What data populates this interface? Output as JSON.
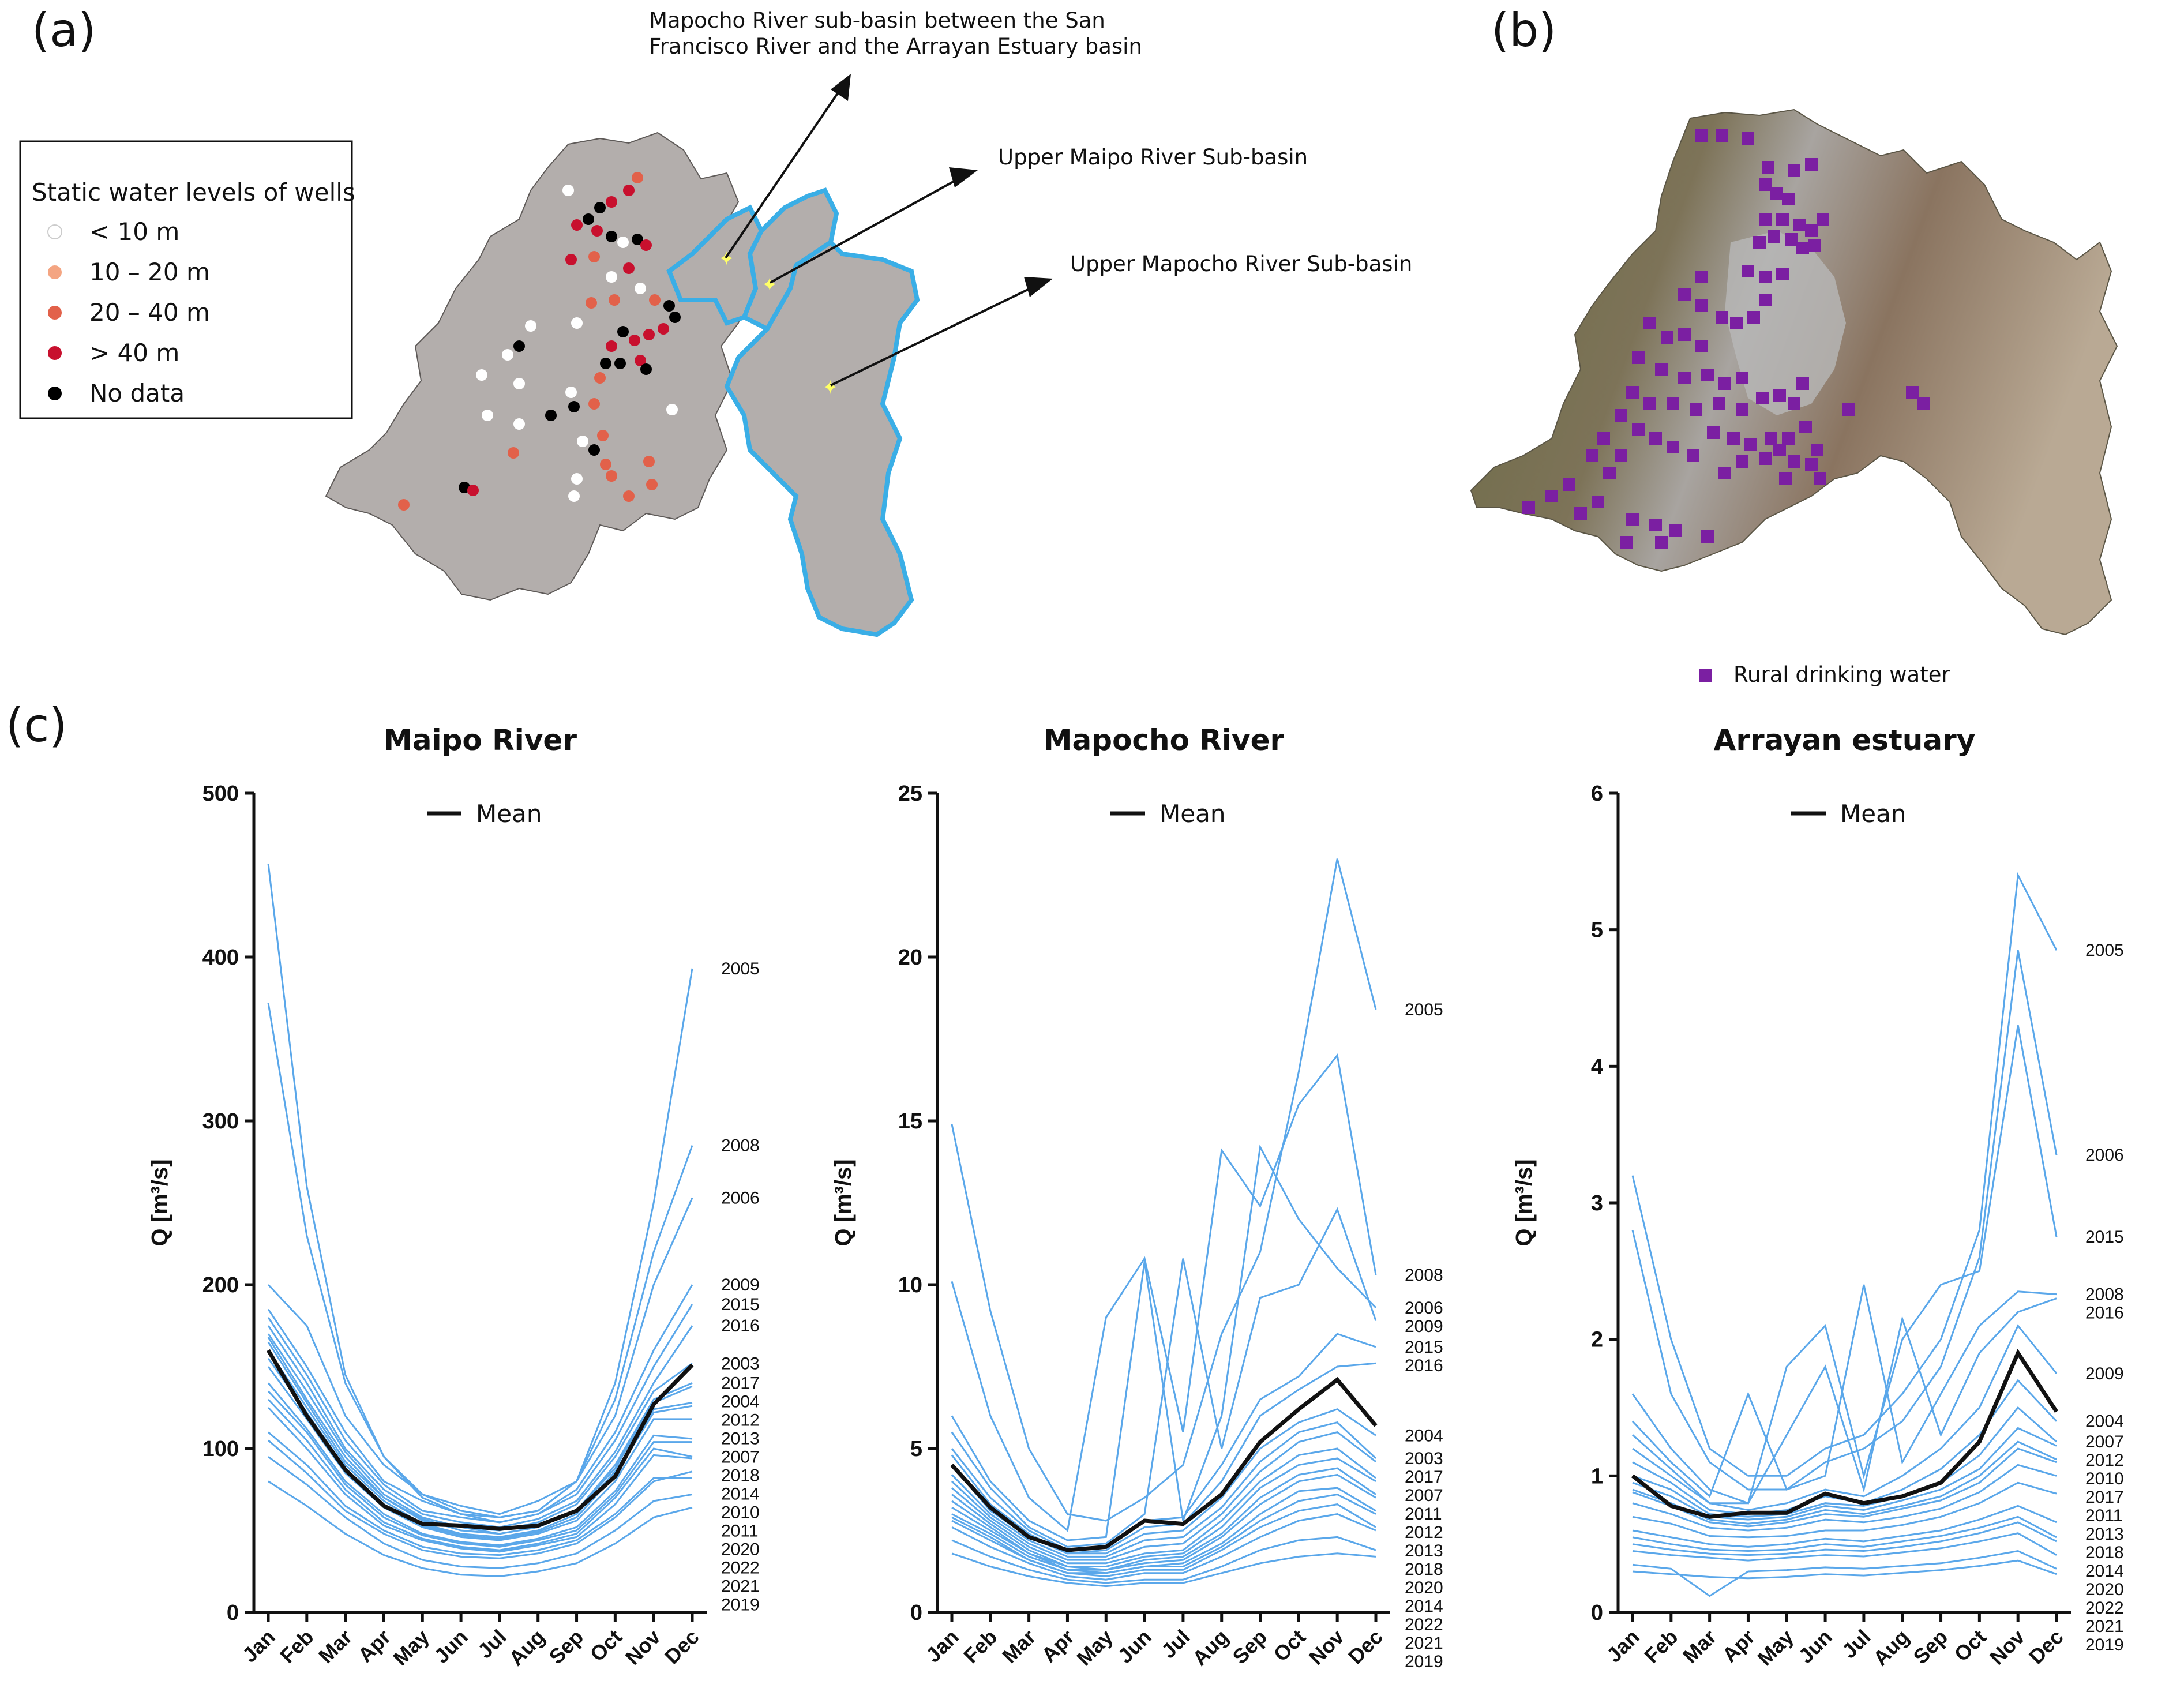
{
  "panels": {
    "a": "(a)",
    "b": "(b)",
    "c": "(c)"
  },
  "map_a": {
    "legend_title": "Static water levels of wells",
    "legend_items": [
      {
        "label": "< 10 m",
        "color": "#ffffff"
      },
      {
        "label": "10 – 20 m",
        "color": "#f4a582"
      },
      {
        "label": "20 – 40 m",
        "color": "#e2614a"
      },
      {
        "label": "> 40 m",
        "color": "#c8102e"
      },
      {
        "label": "No data",
        "color": "#000000"
      }
    ],
    "callouts": [
      "Mapocho River sub-basin between the San",
      "Francisco River and the Arrayan Estuary basin",
      "Upper Maipo River Sub-basin",
      "Upper Mapocho River Sub-basin"
    ],
    "colors": {
      "basin": "#b3aeac",
      "subbasin_outline": "#3aaee6",
      "marker": "#ffff66"
    }
  },
  "map_b": {
    "legend_label": "Rural drinking water",
    "colors": {
      "marker": "#7b1fa2"
    }
  },
  "chart_data": [
    {
      "type": "line",
      "title": "Maipo River",
      "xlabel": "",
      "ylabel": "Q [m³/s]",
      "ylim": [
        0,
        500
      ],
      "yticks": [
        "0",
        "100",
        "200",
        "300",
        "400",
        "500"
      ],
      "categories": [
        "Jan",
        "Feb",
        "Mar",
        "Apr",
        "May",
        "Jun",
        "Jul",
        "Aug",
        "Sep",
        "Oct",
        "Nov",
        "Dec"
      ],
      "legend": "Mean",
      "mean": [
        160,
        120,
        87,
        65,
        54,
        53,
        51,
        53,
        62,
        83,
        127,
        151
      ],
      "series": [
        {
          "name": "2005",
          "values": [
            457,
            260,
            145,
            95,
            70,
            60,
            58,
            62,
            80,
            140,
            250,
            393
          ]
        },
        {
          "name": "2008",
          "values": [
            372,
            230,
            140,
            95,
            72,
            62,
            58,
            62,
            80,
            130,
            220,
            285
          ]
        },
        {
          "name": "2006",
          "values": [
            200,
            175,
            120,
            90,
            72,
            65,
            60,
            68,
            80,
            120,
            200,
            253
          ]
        },
        {
          "name": "2009",
          "values": [
            185,
            150,
            110,
            80,
            68,
            60,
            55,
            60,
            75,
            110,
            160,
            200
          ]
        },
        {
          "name": "2015",
          "values": [
            180,
            145,
            105,
            78,
            62,
            58,
            55,
            60,
            72,
            105,
            150,
            188
          ]
        },
        {
          "name": "2016",
          "values": [
            175,
            140,
            100,
            75,
            60,
            55,
            52,
            57,
            68,
            98,
            140,
            175
          ]
        },
        {
          "name": "2003",
          "values": [
            170,
            135,
            98,
            72,
            58,
            52,
            50,
            55,
            66,
            95,
            135,
            152
          ]
        },
        {
          "name": "2017",
          "values": [
            168,
            130,
            95,
            70,
            57,
            50,
            48,
            52,
            62,
            90,
            130,
            140
          ]
        },
        {
          "name": "2004",
          "values": [
            165,
            128,
            92,
            70,
            56,
            52,
            48,
            52,
            62,
            88,
            128,
            138
          ]
        },
        {
          "name": "2012",
          "values": [
            160,
            125,
            90,
            68,
            54,
            48,
            46,
            50,
            60,
            86,
            124,
            128
          ]
        },
        {
          "name": "2013",
          "values": [
            155,
            122,
            88,
            66,
            53,
            47,
            45,
            49,
            58,
            84,
            122,
            126
          ]
        },
        {
          "name": "2007",
          "values": [
            150,
            118,
            85,
            64,
            52,
            46,
            44,
            48,
            56,
            80,
            118,
            118
          ]
        },
        {
          "name": "2018",
          "values": [
            140,
            112,
            80,
            60,
            48,
            43,
            41,
            45,
            52,
            74,
            108,
            106
          ]
        },
        {
          "name": "2014",
          "values": [
            135,
            110,
            78,
            58,
            47,
            42,
            40,
            44,
            50,
            72,
            104,
            104
          ]
        },
        {
          "name": "2010",
          "values": [
            130,
            105,
            75,
            55,
            45,
            40,
            38,
            42,
            48,
            70,
            100,
            95
          ]
        },
        {
          "name": "2011",
          "values": [
            125,
            100,
            72,
            53,
            44,
            39,
            37,
            41,
            46,
            66,
            96,
            94
          ]
        },
        {
          "name": "2022",
          "values": [
            110,
            90,
            65,
            50,
            40,
            36,
            35,
            38,
            44,
            60,
            82,
            82
          ]
        },
        {
          "name": "2020",
          "values": [
            105,
            85,
            62,
            48,
            38,
            34,
            33,
            36,
            42,
            58,
            80,
            86
          ]
        },
        {
          "name": "2021",
          "values": [
            95,
            78,
            58,
            42,
            32,
            28,
            27,
            30,
            36,
            50,
            68,
            72
          ]
        },
        {
          "name": "2019",
          "values": [
            80,
            65,
            48,
            35,
            27,
            23,
            22,
            25,
            30,
            42,
            58,
            64
          ]
        }
      ]
    },
    {
      "type": "line",
      "title": "Mapocho River",
      "xlabel": "",
      "ylabel": "Q [m³/s]",
      "ylim": [
        0,
        25
      ],
      "yticks": [
        "0",
        "5",
        "10",
        "15",
        "20",
        "25"
      ],
      "categories": [
        "Jan",
        "Feb",
        "Mar",
        "Apr",
        "May",
        "Jun",
        "Jul",
        "Aug",
        "Sep",
        "Oct",
        "Nov",
        "Dec"
      ],
      "legend": "Mean",
      "mean": [
        4.5,
        3.2,
        2.3,
        1.9,
        2.0,
        2.8,
        2.7,
        3.6,
        5.2,
        6.2,
        7.1,
        5.7
      ],
      "series": [
        {
          "name": "2005",
          "values": [
            14.9,
            9.2,
            5.0,
            3.0,
            2.8,
            3.5,
            4.5,
            8.5,
            11.0,
            16.5,
            23.0,
            18.4
          ]
        },
        {
          "name": "2008",
          "values": [
            10.1,
            6.0,
            3.5,
            2.5,
            9.0,
            10.8,
            5.5,
            14.1,
            12.4,
            15.5,
            17.0,
            10.3
          ]
        },
        {
          "name": "2006",
          "values": [
            6.0,
            4.0,
            2.8,
            2.2,
            2.3,
            10.7,
            2.8,
            6.0,
            14.2,
            12.0,
            10.5,
            9.3
          ]
        },
        {
          "name": "2009",
          "values": [
            5.5,
            3.8,
            2.6,
            2.0,
            2.1,
            3.0,
            10.8,
            5.0,
            9.6,
            10.0,
            12.3,
            8.9
          ]
        },
        {
          "name": "2015",
          "values": [
            5.0,
            3.5,
            2.5,
            1.9,
            2.0,
            2.8,
            2.9,
            4.5,
            6.5,
            7.2,
            8.5,
            8.1
          ]
        },
        {
          "name": "2016",
          "values": [
            4.8,
            3.3,
            2.4,
            1.8,
            1.9,
            2.6,
            2.7,
            4.0,
            6.0,
            6.8,
            7.5,
            7.6
          ]
        },
        {
          "name": "2004",
          "values": [
            4.5,
            3.1,
            2.3,
            1.8,
            1.8,
            2.4,
            2.5,
            3.5,
            5.0,
            5.8,
            6.2,
            5.4
          ]
        },
        {
          "name": "2003",
          "values": [
            4.2,
            3.0,
            2.2,
            1.7,
            1.7,
            2.2,
            2.3,
            3.2,
            4.6,
            5.5,
            5.8,
            4.7
          ]
        },
        {
          "name": "2017",
          "values": [
            4.0,
            2.9,
            2.1,
            1.6,
            1.6,
            2.0,
            2.1,
            3.0,
            4.3,
            5.2,
            5.5,
            4.6
          ]
        },
        {
          "name": "2007",
          "values": [
            3.8,
            2.8,
            2.0,
            1.5,
            1.5,
            1.8,
            1.9,
            2.8,
            4.0,
            4.8,
            5.0,
            4.1
          ]
        },
        {
          "name": "2011",
          "values": [
            3.6,
            2.7,
            1.9,
            1.4,
            1.4,
            1.7,
            1.8,
            2.6,
            3.8,
            4.5,
            4.7,
            4.0
          ]
        },
        {
          "name": "2012",
          "values": [
            3.4,
            2.6,
            1.8,
            1.4,
            1.3,
            1.6,
            1.7,
            2.4,
            3.5,
            4.2,
            4.4,
            3.6
          ]
        },
        {
          "name": "2013",
          "values": [
            3.2,
            2.5,
            1.8,
            1.3,
            1.3,
            1.5,
            1.6,
            2.3,
            3.3,
            4.0,
            4.2,
            3.5
          ]
        },
        {
          "name": "2018",
          "values": [
            3.0,
            2.4,
            1.7,
            1.3,
            1.2,
            1.4,
            1.5,
            2.1,
            3.0,
            3.7,
            3.8,
            3.1
          ]
        },
        {
          "name": "2020",
          "values": [
            2.9,
            2.3,
            1.6,
            1.2,
            1.2,
            1.4,
            1.4,
            2.0,
            2.8,
            3.4,
            3.6,
            3.0
          ]
        },
        {
          "name": "2014",
          "values": [
            2.8,
            2.2,
            1.6,
            1.2,
            1.1,
            1.3,
            1.3,
            1.9,
            2.6,
            3.1,
            3.3,
            2.6
          ]
        },
        {
          "name": "2022",
          "values": [
            2.6,
            2.0,
            1.5,
            1.1,
            1.0,
            1.2,
            1.2,
            1.7,
            2.3,
            2.8,
            3.0,
            2.5
          ]
        },
        {
          "name": "2021",
          "values": [
            2.2,
            1.7,
            1.3,
            1.0,
            0.9,
            1.0,
            1.0,
            1.4,
            1.9,
            2.2,
            2.3,
            1.9
          ]
        },
        {
          "name": "2019",
          "values": [
            1.8,
            1.4,
            1.1,
            0.9,
            0.8,
            0.9,
            0.9,
            1.2,
            1.5,
            1.7,
            1.8,
            1.7
          ]
        }
      ]
    },
    {
      "type": "line",
      "title": "Arrayan estuary",
      "xlabel": "",
      "ylabel": "Q [m³/s]",
      "ylim": [
        0,
        6
      ],
      "yticks": [
        "0",
        "1",
        "2",
        "3",
        "4",
        "5",
        "6"
      ],
      "categories": [
        "Jan",
        "Feb",
        "Mar",
        "Apr",
        "May",
        "Jun",
        "Jul",
        "Aug",
        "Sep",
        "Oct",
        "Nov",
        "Dec"
      ],
      "legend": "Mean",
      "mean": [
        1.0,
        0.78,
        0.7,
        0.73,
        0.73,
        0.87,
        0.8,
        0.85,
        0.95,
        1.25,
        1.9,
        1.47
      ],
      "series": [
        {
          "name": "2005",
          "values": [
            3.2,
            2.0,
            1.2,
            1.0,
            1.0,
            1.2,
            1.3,
            1.6,
            2.0,
            2.8,
            5.4,
            4.85
          ]
        },
        {
          "name": "2006",
          "values": [
            2.8,
            1.6,
            1.1,
            0.9,
            0.9,
            1.1,
            1.2,
            1.4,
            1.8,
            2.6,
            4.85,
            3.35
          ]
        },
        {
          "name": "2015",
          "values": [
            1.6,
            1.2,
            0.9,
            0.8,
            1.8,
            2.1,
            1.0,
            2.0,
            2.4,
            2.5,
            4.3,
            2.75
          ]
        },
        {
          "name": "2008",
          "values": [
            1.4,
            1.1,
            0.85,
            1.6,
            0.9,
            1.0,
            2.4,
            1.1,
            1.6,
            2.1,
            2.35,
            2.33
          ]
        },
        {
          "name": "2016",
          "values": [
            1.3,
            1.05,
            0.8,
            0.8,
            1.3,
            1.8,
            0.9,
            2.15,
            1.3,
            1.9,
            2.2,
            2.3
          ]
        },
        {
          "name": "2009",
          "values": [
            1.2,
            1.0,
            0.8,
            0.75,
            0.8,
            0.9,
            0.85,
            1.0,
            1.2,
            1.5,
            2.1,
            1.75
          ]
        },
        {
          "name": "2004",
          "values": [
            1.1,
            0.95,
            0.75,
            0.72,
            0.75,
            0.85,
            0.8,
            0.9,
            1.05,
            1.3,
            1.7,
            1.4
          ]
        },
        {
          "name": "2007",
          "values": [
            1.0,
            0.9,
            0.72,
            0.7,
            0.72,
            0.8,
            0.78,
            0.85,
            0.95,
            1.15,
            1.5,
            1.25
          ]
        },
        {
          "name": "2012",
          "values": [
            0.95,
            0.85,
            0.7,
            0.68,
            0.7,
            0.78,
            0.75,
            0.82,
            0.9,
            1.05,
            1.35,
            1.22
          ]
        },
        {
          "name": "2010",
          "values": [
            0.9,
            0.8,
            0.68,
            0.65,
            0.68,
            0.75,
            0.72,
            0.78,
            0.85,
            1.0,
            1.25,
            1.12
          ]
        },
        {
          "name": "2017",
          "values": [
            0.88,
            0.78,
            0.66,
            0.63,
            0.66,
            0.72,
            0.7,
            0.76,
            0.82,
            0.95,
            1.2,
            1.1
          ]
        },
        {
          "name": "2011",
          "values": [
            0.8,
            0.72,
            0.62,
            0.6,
            0.62,
            0.68,
            0.66,
            0.7,
            0.76,
            0.88,
            1.08,
            1.0
          ]
        },
        {
          "name": "2013",
          "values": [
            0.7,
            0.65,
            0.56,
            0.55,
            0.56,
            0.6,
            0.6,
            0.64,
            0.7,
            0.8,
            0.95,
            0.87
          ]
        },
        {
          "name": "2018",
          "values": [
            0.6,
            0.55,
            0.5,
            0.48,
            0.5,
            0.54,
            0.52,
            0.56,
            0.6,
            0.68,
            0.78,
            0.66
          ]
        },
        {
          "name": "2014",
          "values": [
            0.55,
            0.5,
            0.46,
            0.45,
            0.46,
            0.5,
            0.48,
            0.52,
            0.56,
            0.62,
            0.7,
            0.55
          ]
        },
        {
          "name": "2020",
          "values": [
            0.5,
            0.46,
            0.43,
            0.42,
            0.43,
            0.46,
            0.45,
            0.48,
            0.52,
            0.58,
            0.66,
            0.52
          ]
        },
        {
          "name": "2022",
          "values": [
            0.45,
            0.42,
            0.4,
            0.38,
            0.4,
            0.42,
            0.41,
            0.44,
            0.47,
            0.52,
            0.58,
            0.42
          ]
        },
        {
          "name": "2021",
          "values": [
            0.35,
            0.32,
            0.12,
            0.3,
            0.31,
            0.33,
            0.32,
            0.34,
            0.36,
            0.4,
            0.45,
            0.32
          ]
        },
        {
          "name": "2019",
          "values": [
            0.3,
            0.28,
            0.26,
            0.25,
            0.26,
            0.28,
            0.27,
            0.29,
            0.31,
            0.34,
            0.38,
            0.28
          ]
        }
      ]
    }
  ]
}
